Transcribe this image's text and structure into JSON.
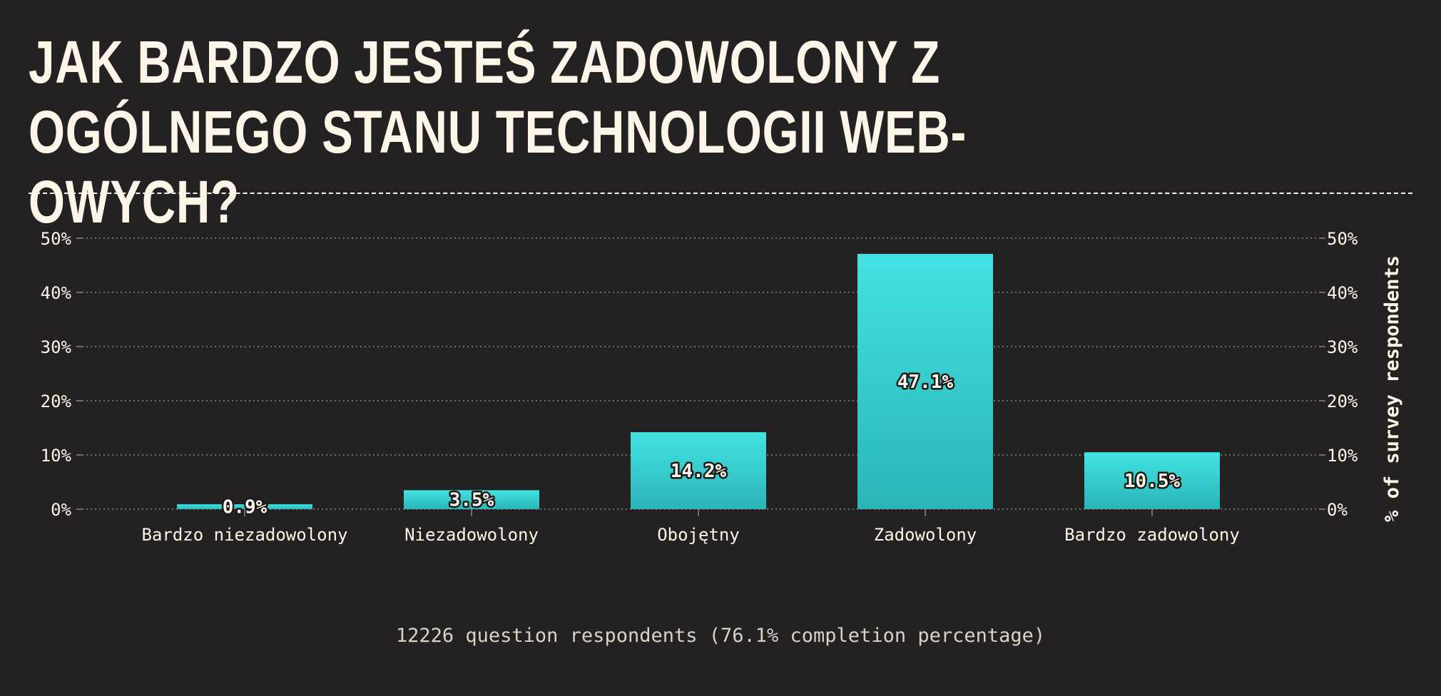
{
  "title": "Jak bardzo jesteś zadowolony z ogólnego stanu technologii web-owych?",
  "footnote": "12226 question respondents (76.1% completion percentage)",
  "colors": {
    "background": "#242123",
    "text": "#fdf6e8",
    "bar_top": "#43e2e2",
    "bar_bottom": "#2bb5b7",
    "grid": "#8a8580"
  },
  "chart_data": {
    "type": "bar",
    "categories": [
      "Bardzo niezadowolony",
      "Niezadowolony",
      "Obojętny",
      "Zadowolony",
      "Bardzo zadowolony"
    ],
    "values": [
      0.9,
      3.5,
      14.2,
      47.1,
      10.5
    ],
    "value_labels": [
      "0.9%",
      "3.5%",
      "14.2%",
      "47.1%",
      "10.5%"
    ],
    "ylim": [
      0,
      50
    ],
    "yticks": [
      0,
      10,
      20,
      30,
      40,
      50
    ],
    "ytick_labels": [
      "0%",
      "10%",
      "20%",
      "30%",
      "40%",
      "50%"
    ],
    "ylabel": "% of survey respondents",
    "xlabel": "",
    "grid": true
  }
}
